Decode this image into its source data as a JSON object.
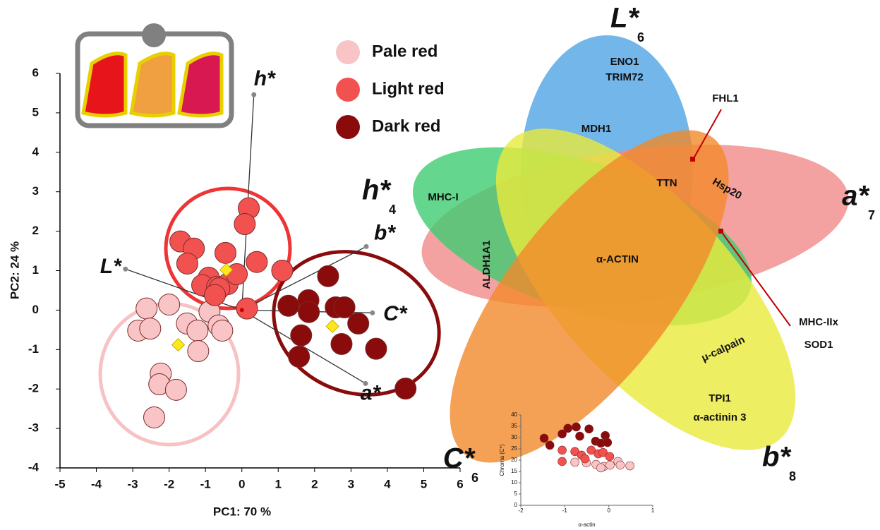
{
  "chart_data": [
    {
      "type": "scatter",
      "x_label": "PC1: 70 %",
      "y_label": "PC2: 24 %",
      "xlim": [
        -5,
        6
      ],
      "xticks": [
        -5,
        -4,
        -3,
        -2,
        -1,
        0,
        1,
        2,
        3,
        4,
        5,
        6
      ],
      "ylim": [
        -4,
        6
      ],
      "yticks": [
        -4,
        -3,
        -2,
        -1,
        0,
        1,
        2,
        3,
        4,
        5,
        6
      ],
      "series": [
        {
          "name": "Pale red",
          "color": "#f8c4c5",
          "x": [
            -2.62,
            -2.0,
            -2.85,
            -2.52,
            -1.51,
            -1.22,
            -0.89,
            -0.64,
            -0.54,
            -1.2,
            -2.23,
            -2.27,
            -1.81,
            -2.41
          ],
          "y": [
            0.04,
            0.14,
            -0.52,
            -0.47,
            -0.34,
            -0.52,
            -0.04,
            -0.39,
            -0.52,
            -1.04,
            -1.61,
            -1.88,
            -2.02,
            -2.72
          ]
        },
        {
          "name": "Light red",
          "color": "#f2524f",
          "x": [
            0.19,
            0.08,
            -1.69,
            -1.32,
            -1.5,
            -0.45,
            0.41,
            1.11,
            -0.91,
            -1.09,
            -0.68,
            -0.39,
            -0.14,
            -0.62,
            -0.74,
            0.14
          ],
          "y": [
            2.58,
            2.18,
            1.74,
            1.56,
            1.18,
            1.45,
            1.22,
            1.0,
            0.82,
            0.63,
            0.59,
            0.66,
            0.91,
            0.55,
            0.38,
            0.04
          ]
        },
        {
          "name": "Dark red",
          "color": "#8a0b0b",
          "x": [
            2.37,
            1.28,
            1.83,
            1.84,
            2.58,
            2.82,
            3.2,
            1.63,
            2.74,
            3.69,
            1.57,
            4.5
          ],
          "y": [
            0.86,
            0.11,
            0.25,
            -0.05,
            0.07,
            0.07,
            -0.34,
            -0.64,
            -0.86,
            -0.98,
            -1.18,
            -1.99
          ]
        }
      ],
      "centroids": {
        "color": "#ffe81a",
        "x": [
          -1.75,
          -0.43,
          2.49
        ],
        "y": [
          -0.88,
          1.02,
          -0.41
        ]
      },
      "loadings": {
        "labels": [
          "h*",
          "b*",
          "L*",
          "C*",
          "a*"
        ],
        "x": [
          0.33,
          3.42,
          -3.2,
          3.59,
          3.4
        ],
        "y": [
          5.46,
          1.61,
          1.04,
          -0.07,
          -1.86
        ]
      }
    },
    {
      "type": "scatter",
      "x_label": "α-actin",
      "y_label": "Chroma (C*)",
      "xlim": [
        -2,
        1
      ],
      "xticks": [
        -2,
        -1,
        0,
        1
      ],
      "ylim": [
        0,
        40
      ],
      "yticks": [
        0,
        5,
        10,
        15,
        20,
        25,
        30,
        35,
        40
      ],
      "series": [
        {
          "color": "#f8c4c5",
          "x": [
            -0.77,
            -0.51,
            -0.29,
            -0.11,
            0.03,
            0.21,
            0.26,
            0.48,
            -0.18
          ],
          "y": [
            19.1,
            18.8,
            18.1,
            17.2,
            17.8,
            19.4,
            17.8,
            17.5,
            16.6
          ]
        },
        {
          "color": "#f2524f",
          "x": [
            -1.06,
            -0.77,
            -0.62,
            -0.4,
            -0.24,
            -0.13,
            -1.06,
            -0.54,
            0.02
          ],
          "y": [
            24.4,
            23.8,
            22.2,
            24.4,
            22.8,
            23.4,
            19.4,
            20.6,
            21.6
          ]
        },
        {
          "color": "#8a0b0b",
          "x": [
            -1.47,
            -1.34,
            -1.06,
            -0.93,
            -0.74,
            -0.66,
            -0.45,
            -0.3,
            -0.18,
            -0.08,
            -0.03
          ],
          "y": [
            29.7,
            26.6,
            31.6,
            34.1,
            34.7,
            30.6,
            33.8,
            28.4,
            27.5,
            30.9,
            27.8
          ]
        }
      ]
    }
  ],
  "venn": {
    "sets": [
      {
        "label": "L*",
        "count": 6
      },
      {
        "label": "a*",
        "count": 7
      },
      {
        "label": "b*",
        "count": 8
      },
      {
        "label": "C*",
        "count": 6
      },
      {
        "label": "h*",
        "count": 4
      }
    ],
    "genes": [
      "ENO1",
      "TRIM72",
      "MDH1",
      "FHL1",
      "TTN",
      "Hsp20",
      "MHC-I",
      "ALDH1A1",
      "α-ACTIN",
      "MHC-IIx",
      "SOD1",
      "μ-calpain",
      "TPI1",
      "α-actinin 3"
    ]
  }
}
